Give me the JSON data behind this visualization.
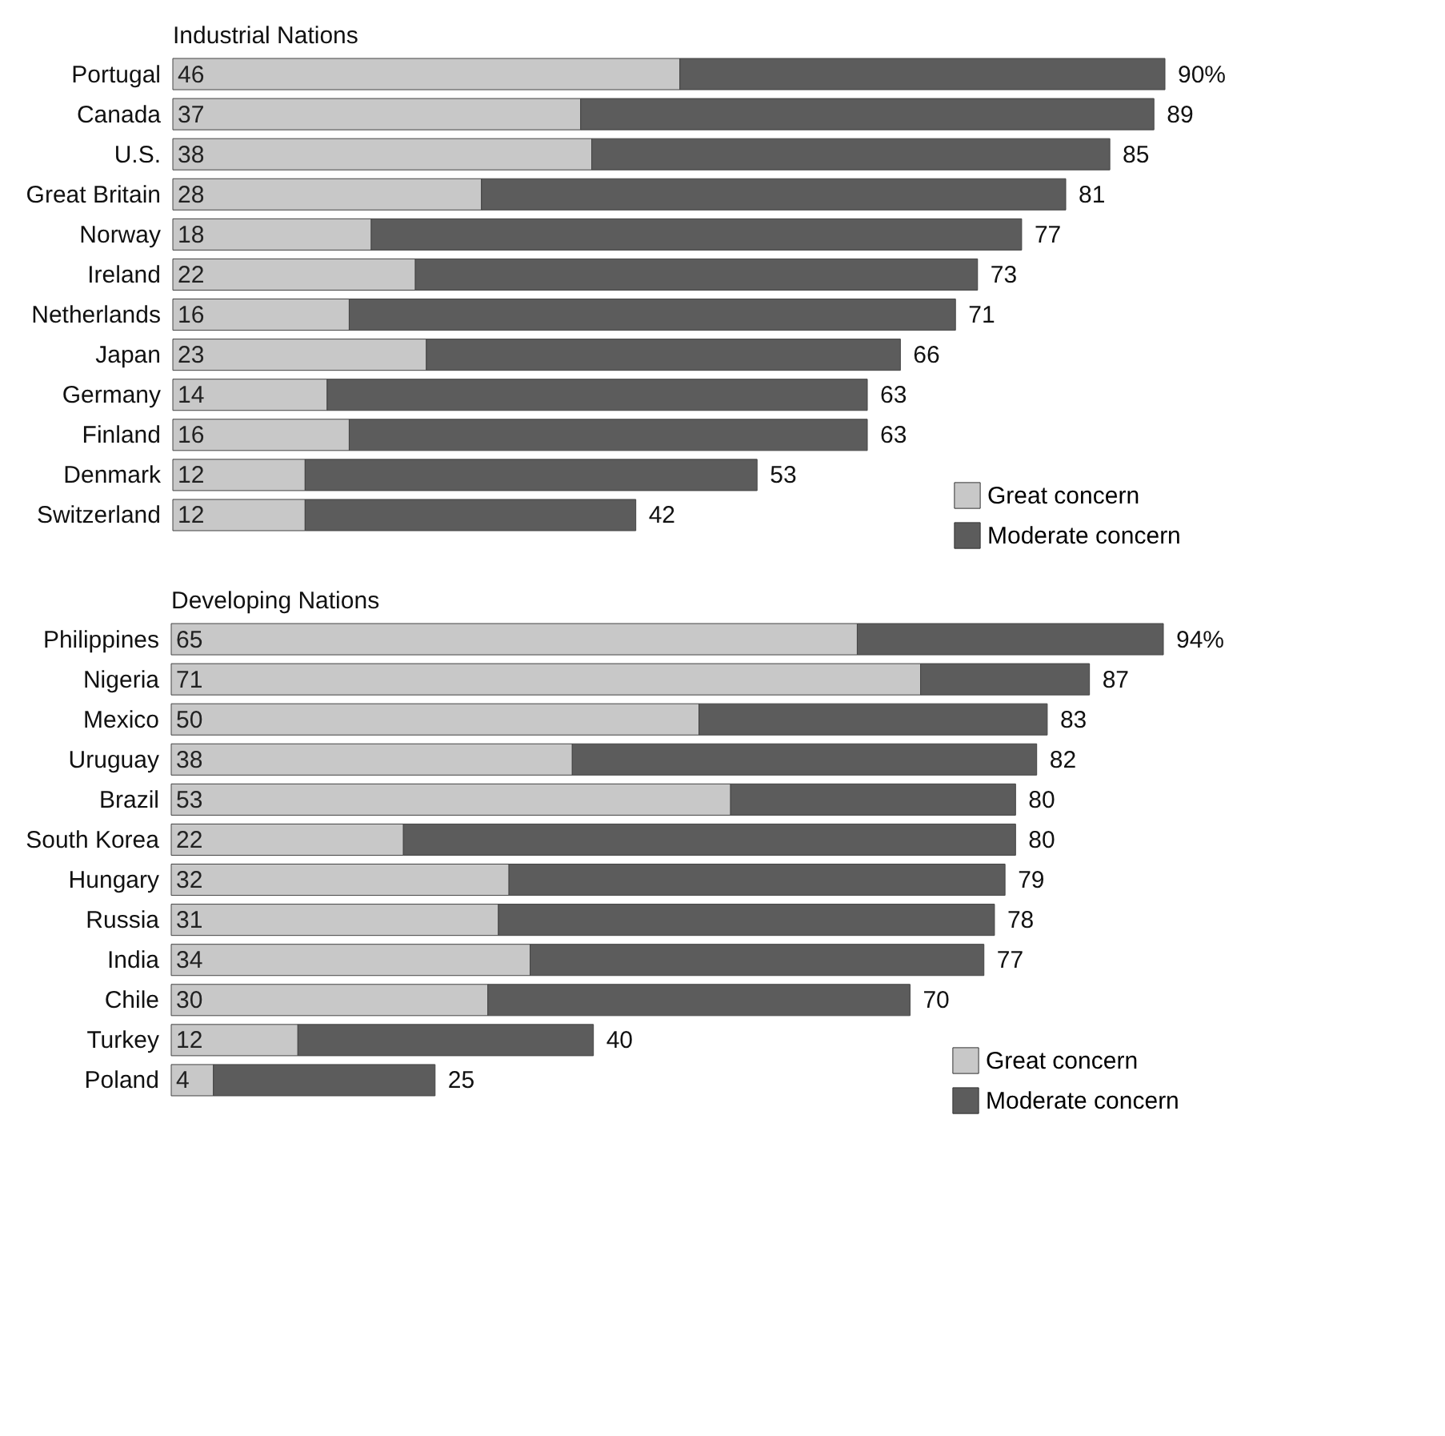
{
  "chart_data": [
    {
      "type": "bar",
      "orientation": "horizontal",
      "stacked": true,
      "title": "Industrial Nations",
      "categories": [
        "Portugal",
        "Canada",
        "U.S.",
        "Great Britain",
        "Norway",
        "Ireland",
        "Netherlands",
        "Japan",
        "Germany",
        "Finland",
        "Denmark",
        "Switzerland"
      ],
      "series": [
        {
          "name": "Great concern",
          "color": "#c8c8c8",
          "values": [
            46,
            37,
            38,
            28,
            18,
            22,
            16,
            23,
            14,
            16,
            12,
            12
          ],
          "value_labels": [
            "46",
            "37",
            "38",
            "28",
            "18",
            "22",
            "16",
            "23",
            "14",
            "16",
            "12",
            "12"
          ]
        },
        {
          "name": "Moderate concern",
          "color": "#5c5c5c",
          "values": [
            44,
            52,
            47,
            53,
            59,
            51,
            55,
            43,
            49,
            47,
            41,
            30
          ]
        }
      ],
      "totals": [
        "90%",
        "89",
        "85",
        "81",
        "77",
        "73",
        "71",
        "66",
        "63",
        "63",
        "53",
        "42"
      ],
      "tick_labels": "y",
      "grid": false,
      "legend": "bottom right"
    },
    {
      "type": "bar",
      "orientation": "horizontal",
      "stacked": true,
      "title": "Developing Nations",
      "categories": [
        "Philippines",
        "Nigeria",
        "Mexico",
        "Uruguay",
        "Brazil",
        "South Korea",
        "Hungary",
        "Russia",
        "India",
        "Chile",
        "Turkey",
        "Poland"
      ],
      "series": [
        {
          "name": "Great concern",
          "color": "#c8c8c8",
          "values": [
            65,
            71,
            50,
            38,
            53,
            22,
            32,
            31,
            34,
            30,
            12,
            4
          ],
          "value_labels": [
            "65",
            "71",
            "50",
            "38",
            "53",
            "22",
            "32",
            "31",
            "34",
            "30",
            "12",
            "4"
          ]
        },
        {
          "name": "Moderate concern",
          "color": "#5c5c5c",
          "values": [
            29,
            16,
            33,
            44,
            27,
            58,
            47,
            47,
            43,
            40,
            28,
            21
          ]
        }
      ],
      "totals": [
        "94%",
        "87",
        "83",
        "82",
        "80",
        "80",
        "79",
        "78",
        "77",
        "70",
        "40",
        "25"
      ],
      "tick_labels": "y",
      "grid": false,
      "legend": "bottom right"
    }
  ]
}
